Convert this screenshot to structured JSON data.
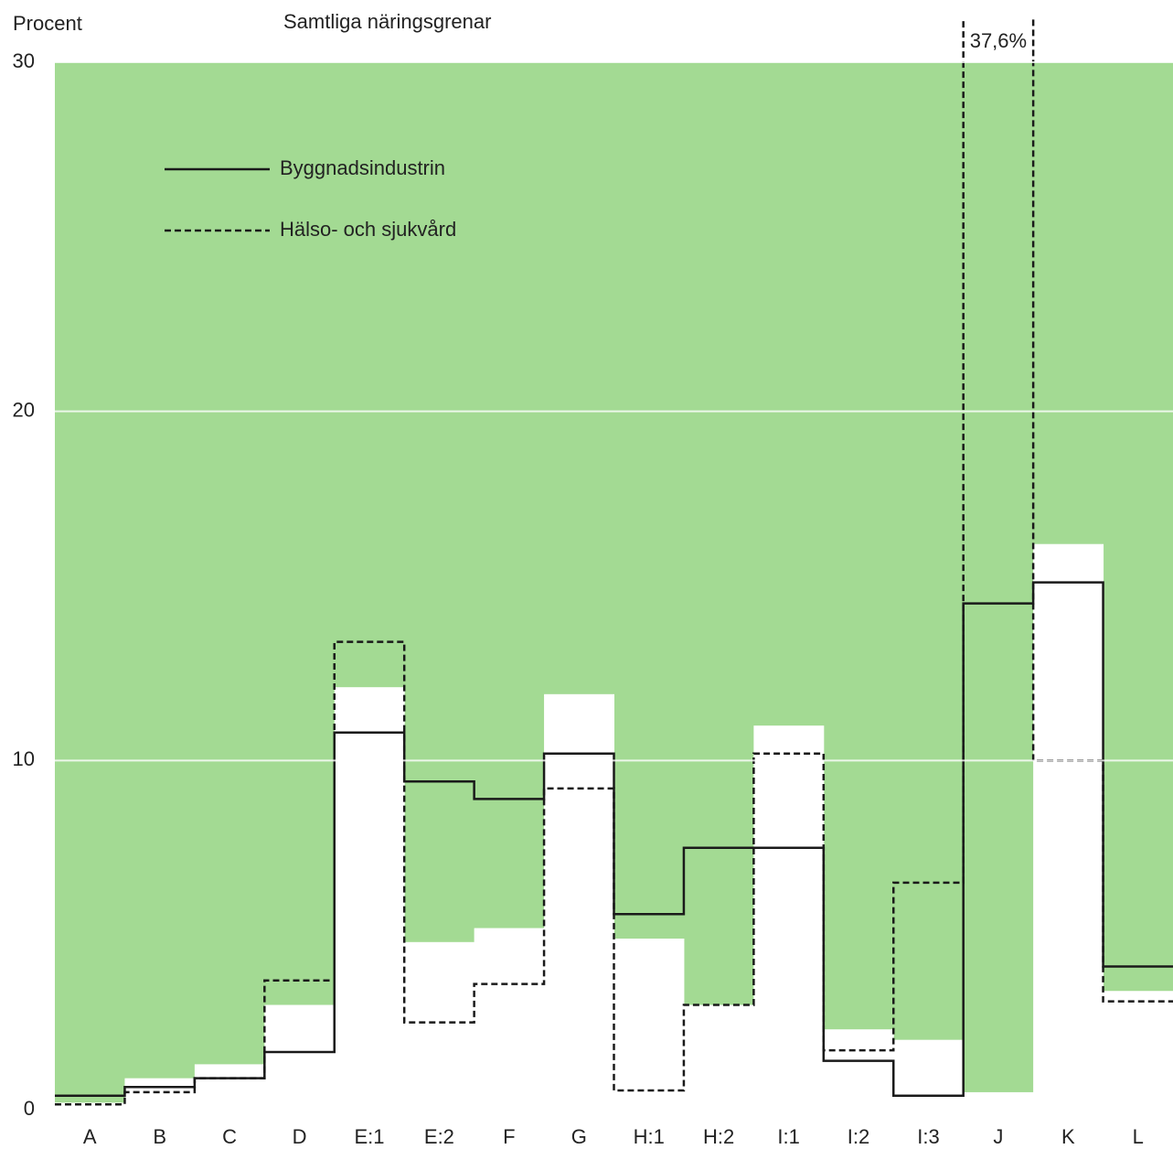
{
  "chart_data": {
    "type": "step",
    "y_label": "Procent",
    "title": "Samtliga näringsgrenar",
    "categories": [
      "A",
      "B",
      "C",
      "D",
      "E:1",
      "E:2",
      "F",
      "G",
      "H:1",
      "H:2",
      "I:1",
      "I:2",
      "I:3",
      "J",
      "K",
      "L"
    ],
    "plot_color": "#a3da93",
    "series": [
      {
        "name": "Samtliga näringsgrenar",
        "style": "bar",
        "color": "#ffffff",
        "values": [
          0.2,
          0.9,
          1.3,
          3.0,
          12.1,
          4.8,
          5.2,
          11.9,
          4.9,
          3.0,
          11.0,
          2.3,
          2.0,
          0.5,
          16.2,
          3.4
        ]
      },
      {
        "name": "Byggnadsindustrin",
        "style": "solid",
        "color": "#1a1a1a",
        "values": [
          0.4,
          0.65,
          0.9,
          1.65,
          10.8,
          9.4,
          8.9,
          10.2,
          5.6,
          7.5,
          7.5,
          1.4,
          0.4,
          14.5,
          15.1,
          4.1
        ]
      },
      {
        "name": "Hälso- och sjukvård",
        "style": "dashed",
        "color": "#1a1a1a",
        "values": [
          0.15,
          0.5,
          0.9,
          3.7,
          13.4,
          2.5,
          3.6,
          9.2,
          0.55,
          3.0,
          10.2,
          1.7,
          6.5,
          37.6,
          10.0,
          3.1
        ],
        "value_labels": [
          null,
          null,
          null,
          null,
          null,
          null,
          null,
          null,
          null,
          null,
          null,
          null,
          null,
          "37,6%",
          null,
          null
        ]
      }
    ],
    "ylim": [
      0,
      30
    ],
    "yticks": [
      0,
      10,
      20,
      30
    ],
    "grid": true
  }
}
